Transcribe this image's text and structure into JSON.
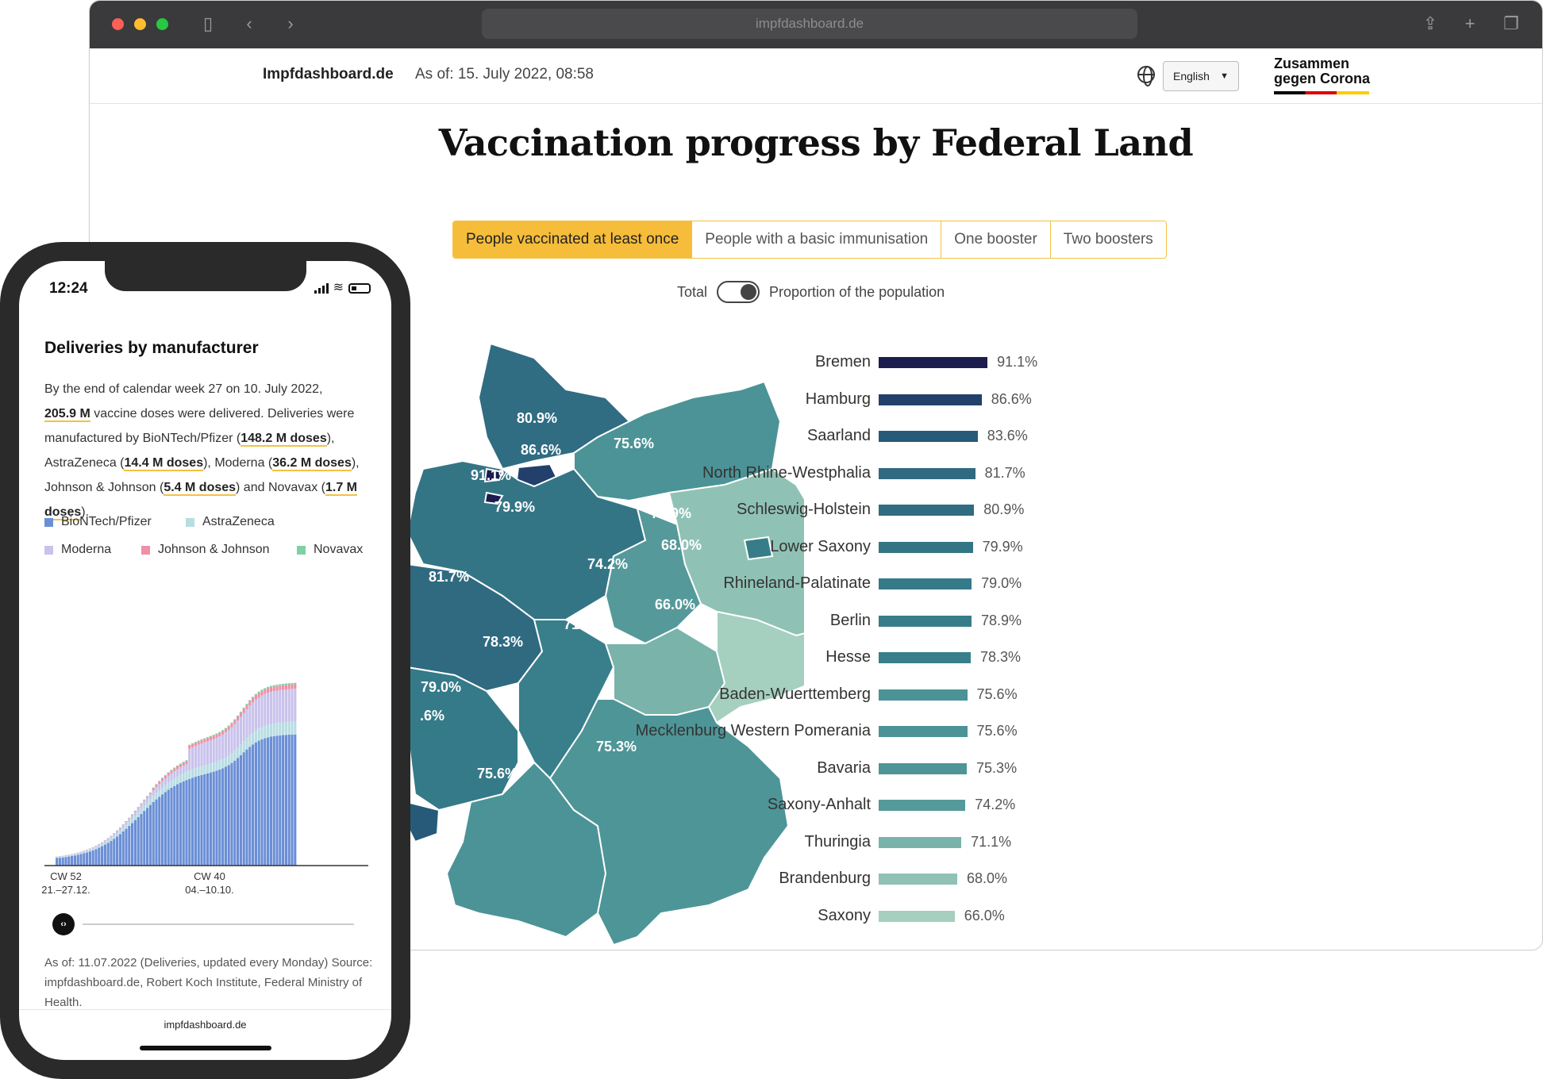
{
  "browser": {
    "url": "impfdashboard.de",
    "nav_back": "‹",
    "nav_forward": "›"
  },
  "header": {
    "brand": "Impfdashboard.de",
    "as_of": "As of: 15. July 2022, 08:58",
    "language": "English",
    "logo_line1": "Zusammen",
    "logo_line2": "gegen Corona"
  },
  "page": {
    "title": "Vaccination progress by Federal Land",
    "tabs": [
      {
        "label": "People vaccinated at least once",
        "active": true
      },
      {
        "label": "People with a basic immunisation",
        "active": false
      },
      {
        "label": "One booster",
        "active": false
      },
      {
        "label": "Two boosters",
        "active": false
      }
    ],
    "toggle_left": "Total",
    "toggle_right": "Proportion of the population"
  },
  "chart_data": {
    "type": "bar",
    "orientation": "horizontal",
    "categories": [
      "Bremen",
      "Hamburg",
      "Saarland",
      "North Rhine-Westphalia",
      "Schleswig-Holstein",
      "Lower Saxony",
      "Rhineland-Palatinate",
      "Berlin",
      "Hesse",
      "Baden-Wuerttemberg",
      "Mecklenburg Western Pomerania",
      "Bavaria",
      "Saxony-Anhalt",
      "Thuringia",
      "Brandenburg",
      "Saxony"
    ],
    "values": [
      91.1,
      86.6,
      83.6,
      81.7,
      80.9,
      79.9,
      79.0,
      78.9,
      78.3,
      75.6,
      75.6,
      75.3,
      74.2,
      71.1,
      68.0,
      66.0
    ],
    "value_labels": [
      "91.1%",
      "86.6%",
      "83.6%",
      "81.7%",
      "80.9%",
      "79.9%",
      "79.0%",
      "78.9%",
      "78.3%",
      "75.6%",
      "75.6%",
      "75.3%",
      "74.2%",
      "71.1%",
      "68.0%",
      "66.0%"
    ],
    "colors": [
      "#1c1c4e",
      "#22406b",
      "#275a79",
      "#2f6a80",
      "#306c82",
      "#347585",
      "#357a88",
      "#377d89",
      "#387f8b",
      "#4b9396",
      "#4b9396",
      "#4e9597",
      "#56999a",
      "#79b3aa",
      "#8fc2b4",
      "#a5cfbe"
    ]
  },
  "map": {
    "labels": [
      {
        "text": "80.9%"
      },
      {
        "text": "86.6%"
      },
      {
        "text": "91.1%"
      },
      {
        "text": "75.6%"
      },
      {
        "text": "79.9%"
      },
      {
        "text": "78.9%"
      },
      {
        "text": "68.0%"
      },
      {
        "text": "74.2%"
      },
      {
        "text": "81.7%"
      },
      {
        "text": "66.0%"
      },
      {
        "text": "71.1%"
      },
      {
        "text": "78.3%"
      },
      {
        "text": "79.0%"
      },
      {
        "text": ".6%"
      },
      {
        "text": "75.3%"
      },
      {
        "text": "75.6%"
      }
    ]
  },
  "phone": {
    "time": "12:24",
    "card_title": "Deliveries by manufacturer",
    "text_1": "By the end of calendar week 27 on 10. July 2022,",
    "hl_total": "205.9 M",
    "text_2": " vaccine doses were delivered. Deliveries were manufactured by BioNTech/Pfizer (",
    "hl_biontech": "148.2 M doses",
    "text_3": "), AstraZeneca (",
    "hl_astra": "14.4 M doses",
    "text_4": "), Moderna (",
    "hl_moderna": "36.2 M doses",
    "text_5": "), Johnson & Johnson (",
    "hl_jj": "5.4 M doses",
    "text_6": ") and Novavax (",
    "hl_novavax": "1.7 M doses",
    "text_7": ").",
    "legend": [
      {
        "label": "BioNTech/Pfizer",
        "color": "#6b8fd6"
      },
      {
        "label": "AstraZeneca",
        "color": "#b8dde3"
      },
      {
        "label": "Moderna",
        "color": "#c9c2ec"
      },
      {
        "label": "Johnson & Johnson",
        "color": "#f08fa5"
      },
      {
        "label": "Novavax",
        "color": "#7fd0a3"
      }
    ],
    "axis": [
      {
        "line1": "CW 52",
        "line2": "21.–27.12."
      },
      {
        "line1": "CW 40",
        "line2": "04.–10.10."
      }
    ],
    "slider_glyph": "‹›",
    "footnote": "As of: 11.07.2022 (Deliveries, updated every Monday) Source: impfdashboard.de, Robert Koch Institute, Federal Ministry of Health.",
    "url": "impfdashboard.de"
  }
}
